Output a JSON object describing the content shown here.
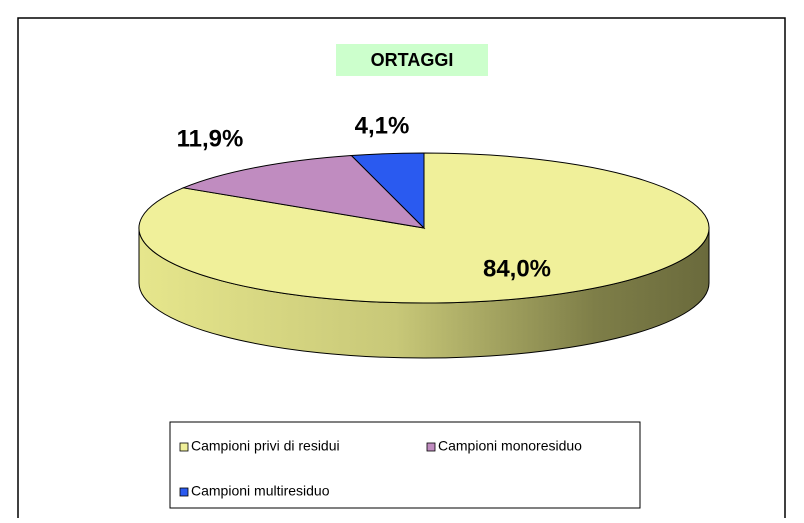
{
  "chart_data": {
    "type": "pie",
    "title": "ORTAGGI",
    "categories": [
      "Campioni privi di residui",
      "Campioni monoresiduo",
      "Campioni multiresiduo"
    ],
    "values": [
      84.0,
      11.9,
      4.1
    ],
    "value_labels": [
      "84,0%",
      "11,9%",
      "4,1%"
    ],
    "colors": [
      "#f0f09a",
      "#c08cc0",
      "#2a5af0"
    ],
    "legend": "bottom"
  }
}
